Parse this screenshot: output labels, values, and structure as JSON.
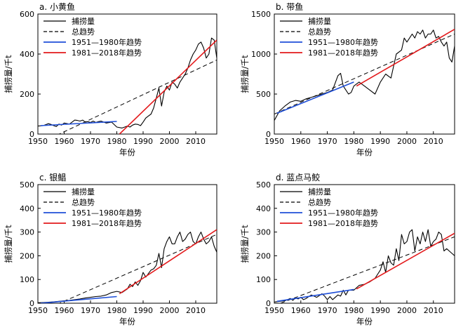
{
  "chart_data": [
    {
      "type": "line",
      "title": "a. 小黄鱼",
      "xlabel": "年份",
      "ylabel": "捕捞量/千t",
      "xlim": [
        1950,
        2018
      ],
      "ylim": [
        0,
        600
      ],
      "xticks": [
        1950,
        1960,
        1970,
        1980,
        1990,
        2000,
        2010
      ],
      "yticks": [
        0,
        200,
        400,
        600
      ],
      "legend": [
        "捕捞量",
        "总趋势",
        "1951—1980年趋势",
        "1981—2018年趋势"
      ],
      "legend_position": "top-left",
      "colors": {
        "catch": "#000000",
        "overall": "#000000",
        "early": "#1f4fd8",
        "late": "#e31a1c"
      },
      "series": [
        {
          "name": "捕捞量",
          "x": [
            1950,
            1952,
            1954,
            1955,
            1956,
            1957,
            1958,
            1959,
            1960,
            1962,
            1963,
            1964,
            1965,
            1966,
            1967,
            1968,
            1969,
            1970,
            1971,
            1972,
            1973,
            1974,
            1976,
            1978,
            1980,
            1982,
            1984,
            1985,
            1986,
            1987,
            1988,
            1989,
            1990,
            1991,
            1992,
            1993,
            1994,
            1995,
            1996,
            1997,
            1998,
            1999,
            2000,
            2001,
            2002,
            2003,
            2004,
            2005,
            2006,
            2007,
            2008,
            2009,
            2010,
            2011,
            2012,
            2013,
            2014,
            2015,
            2016,
            2017,
            2018
          ],
          "y": [
            40,
            42,
            52,
            48,
            42,
            38,
            50,
            45,
            55,
            50,
            60,
            70,
            68,
            65,
            70,
            60,
            62,
            58,
            65,
            58,
            62,
            65,
            55,
            60,
            35,
            30,
            40,
            35,
            45,
            50,
            48,
            42,
            60,
            80,
            90,
            100,
            130,
            180,
            230,
            140,
            210,
            240,
            220,
            260,
            250,
            230,
            260,
            280,
            300,
            330,
            370,
            400,
            420,
            450,
            460,
            430,
            380,
            400,
            480,
            470,
            380
          ]
        },
        {
          "name": "总趋势",
          "x": [
            1950,
            2018
          ],
          "y": [
            -50,
            370
          ]
        },
        {
          "name": "1951—1980年趋势",
          "x": [
            1951,
            1980
          ],
          "y": [
            42,
            63
          ]
        },
        {
          "name": "1981—2018年趋势",
          "x": [
            1981,
            2018
          ],
          "y": [
            0,
            470
          ]
        }
      ]
    },
    {
      "type": "line",
      "title": "b. 带鱼",
      "xlabel": "年份",
      "ylabel": "捕捞量/千t",
      "xlim": [
        1950,
        2018
      ],
      "ylim": [
        0,
        1500
      ],
      "xticks": [
        1950,
        1960,
        1970,
        1980,
        1990,
        2000,
        2010
      ],
      "yticks": [
        0,
        500,
        1000,
        1500
      ],
      "legend": [
        "捕捞量",
        "总趋势",
        "1951—1980年趋势",
        "1981—2018年趋势"
      ],
      "legend_position": "top-left",
      "colors": {
        "catch": "#000000",
        "overall": "#000000",
        "early": "#1f4fd8",
        "late": "#e31a1c"
      },
      "series": [
        {
          "name": "捕捞量",
          "x": [
            1950,
            1952,
            1954,
            1956,
            1958,
            1960,
            1962,
            1964,
            1966,
            1968,
            1970,
            1972,
            1974,
            1975,
            1976,
            1978,
            1979,
            1980,
            1982,
            1984,
            1986,
            1988,
            1990,
            1992,
            1994,
            1996,
            1998,
            1999,
            2000,
            2001,
            2002,
            2003,
            2004,
            2005,
            2006,
            2007,
            2008,
            2009,
            2010,
            2011,
            2012,
            2013,
            2014,
            2015,
            2016,
            2017,
            2018
          ],
          "y": [
            170,
            290,
            350,
            400,
            420,
            410,
            440,
            460,
            480,
            500,
            520,
            550,
            730,
            760,
            600,
            500,
            520,
            600,
            650,
            600,
            550,
            500,
            650,
            750,
            700,
            1000,
            1050,
            1200,
            1150,
            1200,
            1250,
            1200,
            1280,
            1250,
            1300,
            1200,
            1250,
            1250,
            1300,
            1200,
            1220,
            1150,
            1100,
            1150,
            950,
            900,
            1100
          ]
        },
        {
          "name": "总趋势",
          "x": [
            1950,
            2018
          ],
          "y": [
            250,
            1250
          ]
        },
        {
          "name": "1951—1980年趋势",
          "x": [
            1951,
            1980
          ],
          "y": [
            260,
            650
          ]
        },
        {
          "name": "1981—2018年趋势",
          "x": [
            1981,
            2018
          ],
          "y": [
            600,
            1310
          ]
        }
      ]
    },
    {
      "type": "line",
      "title": "c. 银鲳",
      "xlabel": "年份",
      "ylabel": "捕捞量/千t",
      "xlim": [
        1950,
        2018
      ],
      "ylim": [
        0,
        500
      ],
      "xticks": [
        1950,
        1960,
        1970,
        1980,
        1990,
        2000,
        2010
      ],
      "yticks": [
        0,
        100,
        200,
        300,
        400,
        500
      ],
      "legend": [
        "捕捞量",
        "总趋势",
        "1951—1980年趋势",
        "1981—2018年趋势"
      ],
      "legend_position": "top-left",
      "colors": {
        "catch": "#000000",
        "overall": "#000000",
        "early": "#1f4fd8",
        "late": "#e31a1c"
      },
      "series": [
        {
          "name": "捕捞量",
          "x": [
            1950,
            1952,
            1954,
            1956,
            1958,
            1960,
            1962,
            1964,
            1966,
            1968,
            1970,
            1972,
            1974,
            1976,
            1978,
            1980,
            1982,
            1984,
            1985,
            1986,
            1987,
            1988,
            1989,
            1990,
            1991,
            1992,
            1993,
            1994,
            1995,
            1996,
            1997,
            1998,
            1999,
            2000,
            2001,
            2002,
            2003,
            2004,
            2005,
            2006,
            2007,
            2008,
            2009,
            2010,
            2011,
            2012,
            2013,
            2014,
            2015,
            2016,
            2017,
            2018
          ],
          "y": [
            2,
            3,
            4,
            6,
            8,
            10,
            12,
            15,
            18,
            22,
            25,
            28,
            30,
            35,
            45,
            50,
            45,
            60,
            80,
            70,
            90,
            75,
            95,
            130,
            110,
            125,
            140,
            145,
            160,
            210,
            150,
            230,
            260,
            280,
            250,
            250,
            280,
            300,
            260,
            270,
            290,
            300,
            260,
            250,
            280,
            300,
            270,
            250,
            260,
            280,
            240,
            215
          ]
        },
        {
          "name": "总趋势",
          "x": [
            1950,
            2018
          ],
          "y": [
            -40,
            290
          ]
        },
        {
          "name": "1951—1980年趋势",
          "x": [
            1951,
            1980
          ],
          "y": [
            0,
            28
          ]
        },
        {
          "name": "1981—2018年趋势",
          "x": [
            1981,
            2018
          ],
          "y": [
            40,
            310
          ]
        }
      ]
    },
    {
      "type": "line",
      "title": "d. 蓝点马鲛",
      "xlabel": "年份",
      "ylabel": "捕捞量/千t",
      "xlim": [
        1950,
        2018
      ],
      "ylim": [
        0,
        500
      ],
      "xticks": [
        1950,
        1960,
        1970,
        1980,
        1990,
        2000,
        2010
      ],
      "yticks": [
        0,
        100,
        200,
        300,
        400,
        500
      ],
      "legend": [
        "捕捞量",
        "总趋势",
        "1951—1980年趋势",
        "1981—2018年趋势"
      ],
      "legend_position": "top-left",
      "colors": {
        "catch": "#000000",
        "overall": "#000000",
        "early": "#1f4fd8",
        "late": "#e31a1c"
      },
      "series": [
        {
          "name": "捕捞量",
          "x": [
            1950,
            1952,
            1954,
            1955,
            1956,
            1957,
            1958,
            1959,
            1960,
            1961,
            1962,
            1963,
            1964,
            1966,
            1968,
            1969,
            1970,
            1971,
            1972,
            1974,
            1975,
            1976,
            1977,
            1978,
            1980,
            1982,
            1984,
            1986,
            1988,
            1990,
            1991,
            1992,
            1993,
            1994,
            1995,
            1996,
            1997,
            1998,
            1999,
            2000,
            2001,
            2002,
            2003,
            2004,
            2005,
            2006,
            2007,
            2008,
            2009,
            2010,
            2011,
            2012,
            2013,
            2014,
            2015,
            2016,
            2017,
            2018
          ],
          "y": [
            5,
            8,
            10,
            15,
            20,
            12,
            22,
            18,
            25,
            15,
            20,
            28,
            35,
            25,
            40,
            30,
            15,
            28,
            15,
            35,
            30,
            55,
            35,
            55,
            55,
            75,
            80,
            90,
            105,
            140,
            175,
            130,
            200,
            170,
            160,
            230,
            180,
            290,
            250,
            260,
            300,
            310,
            220,
            280,
            250,
            300,
            260,
            310,
            240,
            260,
            270,
            300,
            290,
            220,
            230,
            220,
            210,
            200
          ]
        },
        {
          "name": "总趋势",
          "x": [
            1950,
            2018
          ],
          "y": [
            -10,
            280
          ]
        },
        {
          "name": "1951—1980年趋势",
          "x": [
            1951,
            1980
          ],
          "y": [
            8,
            58
          ]
        },
        {
          "name": "1981—2018年趋势",
          "x": [
            1981,
            2018
          ],
          "y": [
            60,
            295
          ]
        }
      ]
    }
  ]
}
